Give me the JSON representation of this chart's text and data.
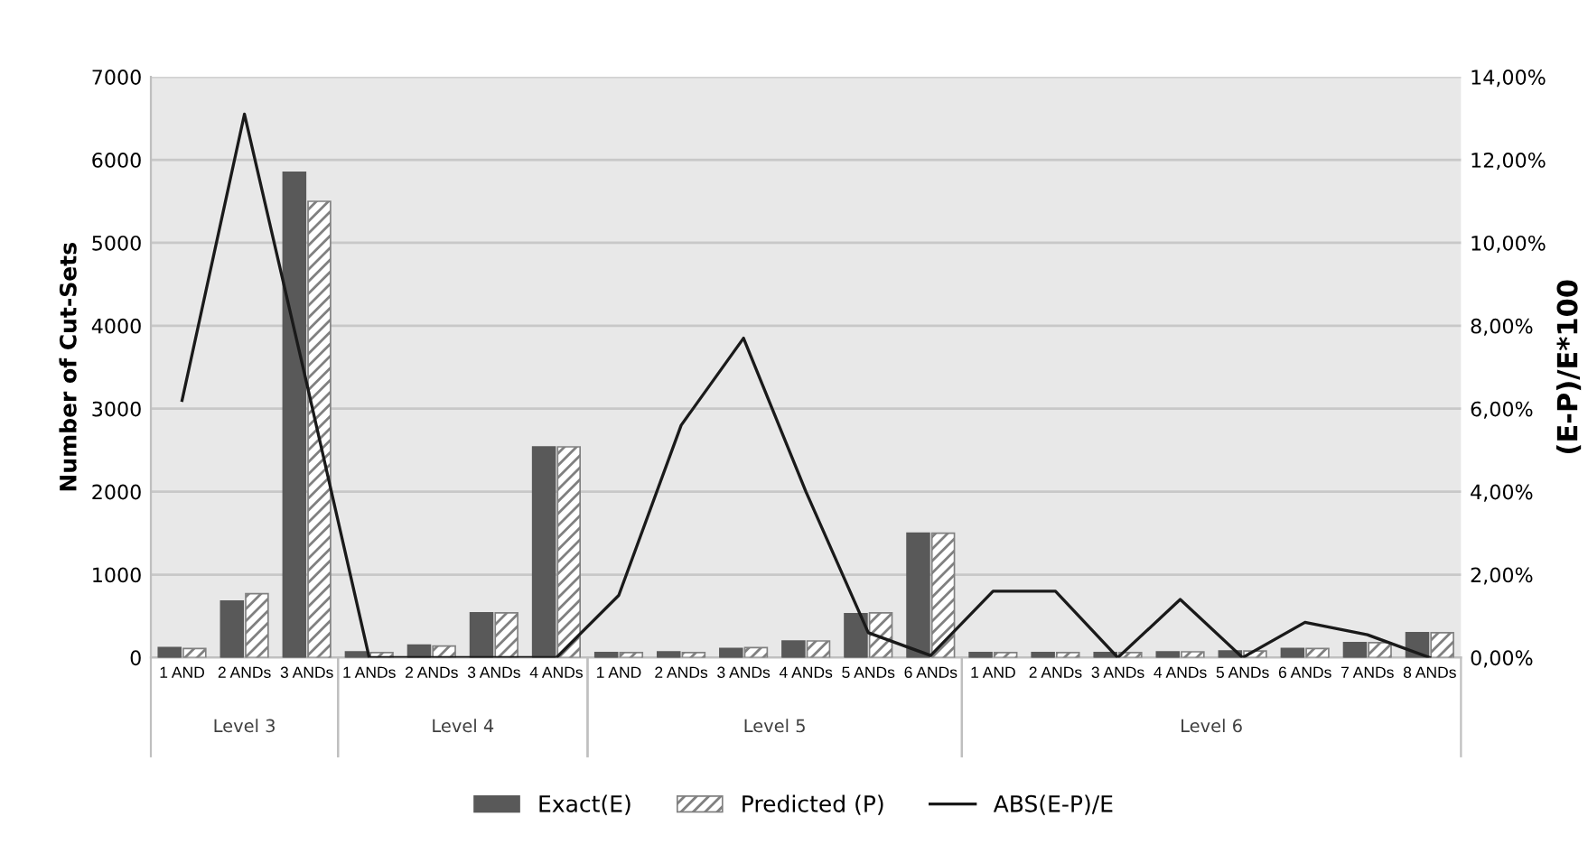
{
  "chart_data": {
    "type": "bar",
    "ylabel": "Number of Cut-Sets",
    "y2label": "(E-P)/E*100",
    "categories": [
      "1 AND",
      "2 ANDs",
      "3 ANDs",
      "1 ANDs",
      "2 ANDs",
      "3 ANDs",
      "4 ANDs",
      "1 AND",
      "2 ANDs",
      "3 ANDs",
      "4 ANDs",
      "5 ANDs",
      "6 ANDs",
      "1 AND",
      "2 ANDs",
      "3 ANDs",
      "4 ANDs",
      "5 ANDs",
      "6 ANDs",
      "7 ANDs",
      "8 ANDs"
    ],
    "series": [
      {
        "name": "Exact(E)",
        "color": "#595959",
        "values": [
          120,
          680,
          5850,
          70,
          150,
          540,
          2540,
          60,
          70,
          110,
          200,
          530,
          1500,
          60,
          60,
          60,
          70,
          80,
          110,
          180,
          300
        ]
      },
      {
        "name": "Predicted (P)",
        "color": "#808080",
        "values": [
          110,
          770,
          5500,
          60,
          140,
          540,
          2540,
          60,
          60,
          120,
          200,
          540,
          1500,
          60,
          60,
          60,
          70,
          80,
          110,
          180,
          300
        ]
      },
      {
        "name": "ABS(E-P)/E",
        "type": "line",
        "axis": "y2",
        "color": "#1a1a1a",
        "values": [
          6.2,
          13.1,
          6.6,
          0,
          0,
          0,
          0,
          1.5,
          5.6,
          7.7,
          4.0,
          0.6,
          0.05,
          1.6,
          1.6,
          0,
          1.4,
          0,
          0.85,
          0.55,
          0
        ]
      }
    ],
    "ylim": [
      0,
      7000
    ],
    "yticks": [
      0,
      1000,
      2000,
      3000,
      4000,
      5000,
      6000,
      7000
    ],
    "y2lim": [
      0,
      14
    ],
    "y2ticks": [
      {
        "value": 0,
        "label": "0,00%"
      },
      {
        "value": 2,
        "label": "2,00%"
      },
      {
        "value": 4,
        "label": "4,00%"
      },
      {
        "value": 6,
        "label": "6,00%"
      },
      {
        "value": 8,
        "label": "8,00%"
      },
      {
        "value": 10,
        "label": "10,00%"
      },
      {
        "value": 12,
        "label": "12,00%"
      },
      {
        "value": 14,
        "label": "14,00%"
      }
    ],
    "annotations": [
      "Level 3",
      "Level 4",
      "Level 5",
      "Level 6"
    ],
    "grid": "y",
    "legend": "bottom",
    "marker": "none",
    "line_style": "solid"
  }
}
